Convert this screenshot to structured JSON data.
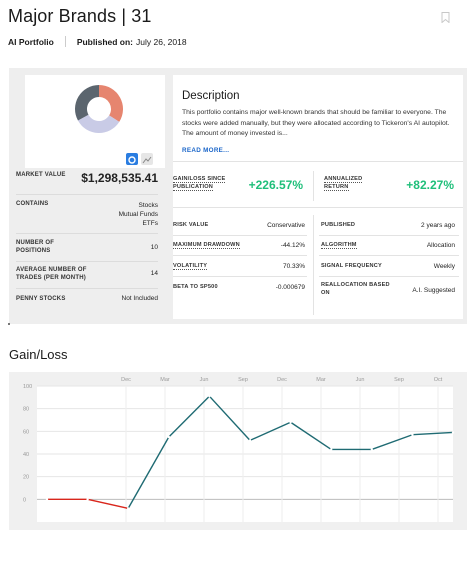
{
  "header": {
    "title": "Major Brands | 31",
    "brand": "AI Portfolio",
    "published_label": "Published on:",
    "published_date": "July 26, 2018"
  },
  "summary": {
    "market_value_label": "MARKET VALUE",
    "market_value": "$1,298,535.41",
    "contains_label": "CONTAINS",
    "contains": [
      "Stocks",
      "Mutual Funds",
      "ETFs"
    ],
    "positions_label": "NUMBER OF POSITIONS",
    "positions": "10",
    "trades_label": "AVERAGE NUMBER OF TRADES (PER MONTH)",
    "trades": "14",
    "penny_label": "PENNY STOCKS",
    "penny": "Not Included",
    "donut_colors": [
      "#e6856f",
      "#c9cbe6",
      "#5b656e"
    ],
    "donut_values": [
      0.34,
      0.33,
      0.33
    ]
  },
  "description": {
    "title": "Description",
    "text": "This portfolio contains major well-known brands that should be familiar to everyone. The stocks were added manually, but they were allocated according to Tickeron's AI autopilot. The amount of money invested is...",
    "read_more": "READ MORE..."
  },
  "stats": {
    "gain_label": "GAIN/LOSS SINCE PUBLICATION",
    "gain_value": "+226.57%",
    "annual_label": "ANNUALIZED RETURN",
    "annual_value": "+82.27%",
    "risk_label": "RISK VALUE",
    "risk_value": "Conservative",
    "drawdown_label": "MAXIMUM DRAWDOWN",
    "drawdown_value": "-44.12%",
    "volatility_label": "VOLATILITY",
    "volatility_value": "70.33%",
    "beta_label": "BETA TO SP500",
    "beta_value": "-0.000679",
    "published_label": "PUBLISHED",
    "published_value": "2 years ago",
    "algorithm_label": "ALGORITHM",
    "algorithm_value": "Allocation",
    "signal_label": "SIGNAL FREQUENCY",
    "signal_value": "Weekly",
    "realloc_label": "REALLOCATION BASED ON",
    "realloc_value": "A.I. Suggested"
  },
  "gain_section": {
    "title": "Gain/Loss"
  },
  "chart_data": {
    "type": "line",
    "x_ticks": [
      "Dec",
      "Mar",
      "Jun",
      "Sep",
      "Dec",
      "Mar",
      "Jun",
      "Sep",
      "Oct"
    ],
    "y_ticks": [
      100,
      80,
      60,
      40,
      20,
      0
    ],
    "ylim": [
      -20,
      100
    ],
    "x": [
      0,
      1,
      2,
      3,
      4,
      5,
      6,
      7,
      8,
      9,
      10
    ],
    "values": [
      0,
      0,
      -8,
      55,
      91,
      52,
      68,
      44,
      44,
      57,
      59
    ],
    "negative_color": "#d9261c",
    "positive_color": "#1f6b73"
  }
}
